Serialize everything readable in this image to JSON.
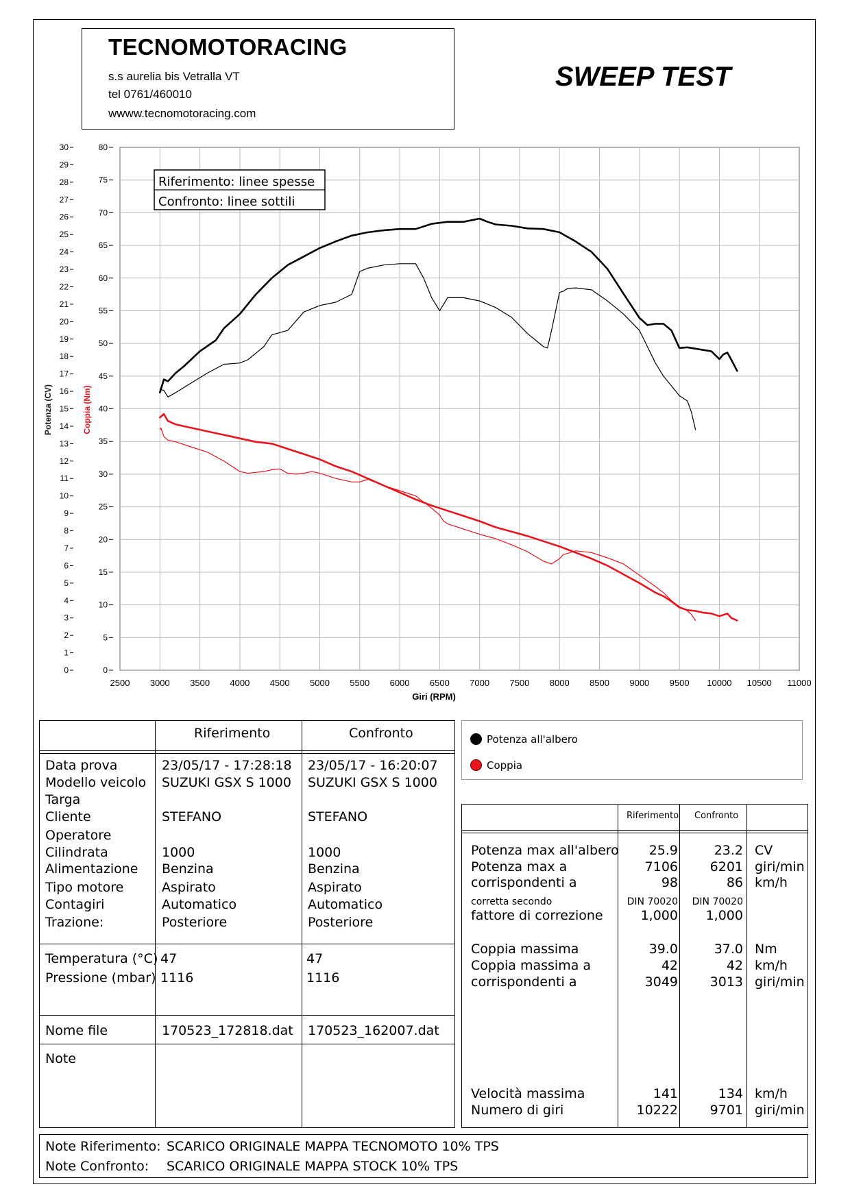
{
  "header": {
    "company": "TECNOMOTORACING",
    "address": "s.s aurelia bis  Vetralla  VT",
    "tel": "tel 0761/460010",
    "web": "wwww.tecnomotoracing.com",
    "title": "SWEEP TEST"
  },
  "chart_data": {
    "type": "line",
    "xlabel": "Giri (RPM)",
    "ylabel_left": "Potenza (CV)",
    "ylabel_right": "Coppia (Nm)",
    "xlim": [
      2500,
      11000
    ],
    "x_ticks": [
      2500,
      3000,
      3500,
      4000,
      4500,
      5000,
      5500,
      6000,
      6500,
      7000,
      7500,
      8000,
      8500,
      9000,
      9500,
      10000,
      10500,
      11000
    ],
    "ylim_cv": [
      0,
      30
    ],
    "ylim_nm": [
      0,
      80
    ],
    "cv_ticks": [
      0,
      1,
      2,
      3,
      4,
      5,
      6,
      7,
      8,
      9,
      10,
      11,
      12,
      13,
      14,
      15,
      16,
      17,
      18,
      19,
      20,
      21,
      22,
      23,
      24,
      25,
      26,
      27,
      28,
      29,
      30
    ],
    "nm_ticks": [
      0,
      5,
      10,
      15,
      20,
      25,
      30,
      35,
      40,
      45,
      50,
      55,
      60,
      65,
      70,
      75,
      80
    ],
    "grid": true,
    "inset_legend": [
      "Riferimento: linee spesse",
      "Confronto: linee sottili"
    ],
    "series": [
      {
        "name": "Potenza all'albero",
        "run": "Riferimento",
        "color": "#000000",
        "width": 2.6,
        "scale": "nm",
        "x": [
          3000,
          3050,
          3100,
          3200,
          3300,
          3500,
          3700,
          3800,
          4000,
          4200,
          4400,
          4600,
          4800,
          5000,
          5200,
          5400,
          5600,
          5800,
          6000,
          6200,
          6400,
          6600,
          6800,
          7000,
          7100,
          7200,
          7400,
          7600,
          7800,
          8000,
          8200,
          8400,
          8600,
          8800,
          9000,
          9100,
          9200,
          9300,
          9400,
          9500,
          9600,
          9700,
          9800,
          9900,
          10000,
          10050,
          10100,
          10150,
          10222
        ],
        "y": [
          42.5,
          44.5,
          44.2,
          45.5,
          46.5,
          48.8,
          50.5,
          52.3,
          54.5,
          57.5,
          60.0,
          62.0,
          63.3,
          64.6,
          65.6,
          66.5,
          67.0,
          67.3,
          67.5,
          67.5,
          68.3,
          68.6,
          68.6,
          69.1,
          68.6,
          68.2,
          68.0,
          67.6,
          67.5,
          67.0,
          65.6,
          64.0,
          61.4,
          57.6,
          53.9,
          52.8,
          53.0,
          53.0,
          52.0,
          49.3,
          49.4,
          49.2,
          49.0,
          48.8,
          47.6,
          48.3,
          48.6,
          47.5,
          45.8
        ]
      },
      {
        "name": "Potenza all'albero",
        "run": "Confronto",
        "color": "#000000",
        "width": 1.2,
        "scale": "nm",
        "x": [
          3000,
          3050,
          3100,
          3200,
          3400,
          3600,
          3800,
          4000,
          4100,
          4300,
          4400,
          4600,
          4800,
          5000,
          5200,
          5400,
          5500,
          5600,
          5800,
          6000,
          6200,
          6300,
          6400,
          6500,
          6550,
          6600,
          6800,
          7000,
          7200,
          7400,
          7600,
          7800,
          7850,
          7900,
          8000,
          8050,
          8100,
          8200,
          8400,
          8600,
          8800,
          9000,
          9100,
          9200,
          9300,
          9400,
          9500,
          9600,
          9650,
          9701
        ],
        "y": [
          43.0,
          42.8,
          41.8,
          42.5,
          44.0,
          45.5,
          46.8,
          47.0,
          47.5,
          49.5,
          51.3,
          52.0,
          54.8,
          55.8,
          56.3,
          57.5,
          61.0,
          61.5,
          62.0,
          62.2,
          62.2,
          60.0,
          57.0,
          55.0,
          56.0,
          57.0,
          57.0,
          56.5,
          55.5,
          54.0,
          51.5,
          49.5,
          49.3,
          52.0,
          57.8,
          58.0,
          58.4,
          58.5,
          58.2,
          56.5,
          54.5,
          52.0,
          49.5,
          47.0,
          45.0,
          43.5,
          42.0,
          41.2,
          39.5,
          36.8
        ]
      },
      {
        "name": "Coppia",
        "run": "Riferimento",
        "color": "#e8141e",
        "width": 2.6,
        "scale": "cv",
        "x": [
          3000,
          3049,
          3100,
          3200,
          3400,
          3600,
          3800,
          4000,
          4200,
          4400,
          4600,
          4800,
          5000,
          5200,
          5400,
          5600,
          5800,
          6000,
          6200,
          6400,
          6600,
          6800,
          7000,
          7200,
          7400,
          7600,
          7800,
          8000,
          8200,
          8400,
          8600,
          8800,
          9000,
          9200,
          9300,
          9400,
          9500,
          9600,
          9700,
          9800,
          9900,
          10000,
          10100,
          10150,
          10222
        ],
        "y": [
          14.5,
          14.7,
          14.3,
          14.1,
          13.9,
          13.7,
          13.5,
          13.3,
          13.1,
          13.0,
          12.7,
          12.4,
          12.1,
          11.7,
          11.4,
          11.0,
          10.6,
          10.2,
          9.8,
          9.45,
          9.15,
          8.85,
          8.55,
          8.2,
          7.95,
          7.7,
          7.4,
          7.1,
          6.75,
          6.4,
          6.0,
          5.5,
          5.0,
          4.45,
          4.25,
          3.95,
          3.6,
          3.45,
          3.4,
          3.3,
          3.25,
          3.1,
          3.25,
          3.0,
          2.85
        ]
      },
      {
        "name": "Coppia",
        "run": "Confronto",
        "color": "#e8141e",
        "width": 1.2,
        "scale": "cv",
        "x": [
          3000,
          3013,
          3050,
          3100,
          3200,
          3400,
          3600,
          3800,
          4000,
          4100,
          4200,
          4300,
          4400,
          4500,
          4600,
          4700,
          4800,
          4900,
          5000,
          5200,
          5400,
          5500,
          5600,
          5800,
          6000,
          6200,
          6400,
          6500,
          6550,
          6600,
          6800,
          7000,
          7200,
          7400,
          7600,
          7800,
          7900,
          8000,
          8050,
          8100,
          8200,
          8400,
          8600,
          8800,
          9000,
          9200,
          9300,
          9400,
          9500,
          9600,
          9650,
          9701
        ],
        "y": [
          13.8,
          13.9,
          13.4,
          13.2,
          13.1,
          12.8,
          12.5,
          12.0,
          11.4,
          11.3,
          11.35,
          11.4,
          11.5,
          11.55,
          11.3,
          11.25,
          11.3,
          11.4,
          11.3,
          11.0,
          10.8,
          10.8,
          10.95,
          10.6,
          10.3,
          10.0,
          9.3,
          8.9,
          8.55,
          8.4,
          8.1,
          7.8,
          7.55,
          7.2,
          6.8,
          6.25,
          6.1,
          6.4,
          6.65,
          6.7,
          6.85,
          6.75,
          6.45,
          6.1,
          5.45,
          4.8,
          4.45,
          4.0,
          3.65,
          3.4,
          3.2,
          2.85
        ]
      }
    ]
  },
  "legend": {
    "power": "Potenza all'albero",
    "torque": "Coppia",
    "power_color": "#000000",
    "torque_color": "#e8141e"
  },
  "info_table": {
    "col_ref": "Riferimento",
    "col_cmp": "Confronto",
    "rows": [
      {
        "label": "Data prova",
        "ref": "23/05/17 - 17:28:18",
        "cmp": "23/05/17 - 16:20:07"
      },
      {
        "label": "Modello veicolo",
        "ref": "SUZUKI GSX S 1000",
        "cmp": "SUZUKI GSX S 1000"
      },
      {
        "label": "Targa",
        "ref": "",
        "cmp": ""
      },
      {
        "label": "Cliente",
        "ref": "STEFANO",
        "cmp": "STEFANO"
      },
      {
        "label": "Operatore",
        "ref": "",
        "cmp": ""
      },
      {
        "label": "Cilindrata",
        "ref": "1000",
        "cmp": "1000"
      },
      {
        "label": "Alimentazione",
        "ref": "Benzina",
        "cmp": "Benzina"
      },
      {
        "label": "Tipo motore",
        "ref": "Aspirato",
        "cmp": "Aspirato"
      },
      {
        "label": "Contagiri",
        "ref": "Automatico",
        "cmp": "Automatico"
      },
      {
        "label": "Trazione:",
        "ref": "Posteriore",
        "cmp": "Posteriore"
      }
    ],
    "env_rows": [
      {
        "label": "Temperatura (°C)",
        "ref": "47",
        "cmp": "47"
      },
      {
        "label": "Pressione (mbar)",
        "ref": "1116",
        "cmp": "1116"
      }
    ],
    "file_label": "Nome file",
    "file_ref": "170523_172818.dat",
    "file_cmp": "170523_162007.dat",
    "note_label": "Note"
  },
  "results": {
    "col_ref": "Riferimento",
    "col_cmp": "Confronto",
    "rows": [
      {
        "label": "Potenza max all'albero",
        "ref": "25.9",
        "cmp": "23.2",
        "unit": "CV"
      },
      {
        "label": "Potenza max a",
        "ref": "7106",
        "cmp": "6201",
        "unit": "giri/min"
      },
      {
        "label": "corrispondenti a",
        "ref": "98",
        "cmp": "86",
        "unit": "km/h"
      },
      {
        "label": "corretta secondo",
        "ref": "DIN 70020",
        "cmp": "DIN 70020",
        "unit": ""
      },
      {
        "label": "fattore di correzione",
        "ref": "1,000",
        "cmp": "1,000",
        "unit": ""
      },
      {
        "label": "Coppia massima",
        "ref": "39.0",
        "cmp": "37.0",
        "unit": "Nm"
      },
      {
        "label": "Coppia massima a",
        "ref": "42",
        "cmp": "42",
        "unit": "km/h"
      },
      {
        "label": "corrispondenti a",
        "ref": "3049",
        "cmp": "3013",
        "unit": "giri/min"
      },
      {
        "label": "Velocità massima",
        "ref": "141",
        "cmp": "134",
        "unit": "km/h"
      },
      {
        "label": "Numero di giri",
        "ref": "10222",
        "cmp": "9701",
        "unit": "giri/min"
      }
    ]
  },
  "notes": {
    "ref_label": "Note Riferimento:",
    "ref_text": "SCARICO ORIGINALE MAPPA TECNOMOTO 10% TPS",
    "cmp_label": "Note Confronto:",
    "cmp_text": "SCARICO ORIGINALE MAPPA STOCK 10% TPS"
  }
}
